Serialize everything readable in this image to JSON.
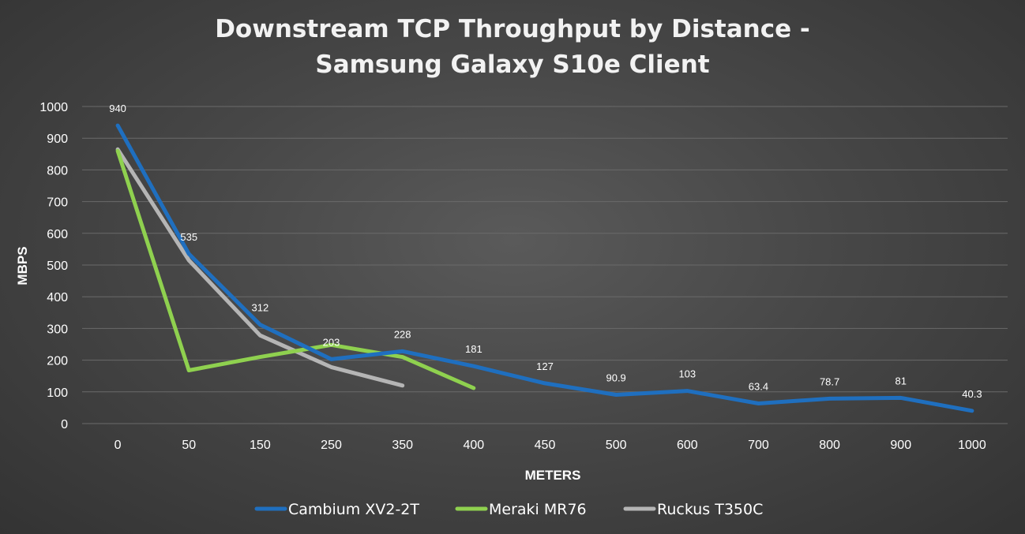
{
  "chart_data": {
    "type": "line",
    "title": "Downstream TCP Throughput by Distance -",
    "subtitle": "Samsung Galaxy S10e Client",
    "xlabel": "METERS",
    "ylabel": "MBPS",
    "ylim": [
      0,
      1000
    ],
    "y_ticks": [
      "0",
      "100",
      "200",
      "300",
      "400",
      "500",
      "600",
      "700",
      "800",
      "900",
      "1000"
    ],
    "categories": [
      "0",
      "50",
      "150",
      "250",
      "350",
      "400",
      "450",
      "500",
      "600",
      "700",
      "800",
      "900",
      "1000"
    ],
    "grid": true,
    "legend_position": "bottom",
    "series": [
      {
        "name": "Cambium XV2-2T",
        "color": "#1f6fbf",
        "values": [
          940,
          535,
          312,
          203,
          228,
          181,
          127,
          90.9,
          103,
          63.4,
          78.7,
          81,
          40.3
        ],
        "labels": [
          "940",
          "535",
          "312",
          "203",
          "228",
          "181",
          "127",
          "90.9",
          "103",
          "63.4",
          "78.7",
          "81",
          "40.3"
        ]
      },
      {
        "name": "Meraki MR76",
        "color": "#8fd14f",
        "values": [
          860,
          168,
          210,
          248,
          210,
          112,
          null,
          null,
          null,
          null,
          null,
          null,
          null
        ]
      },
      {
        "name": "Ruckus T350C",
        "color": "#b5b5b5",
        "values": [
          865,
          515,
          278,
          178,
          120,
          null,
          null,
          null,
          null,
          null,
          null,
          null,
          null
        ]
      }
    ]
  }
}
